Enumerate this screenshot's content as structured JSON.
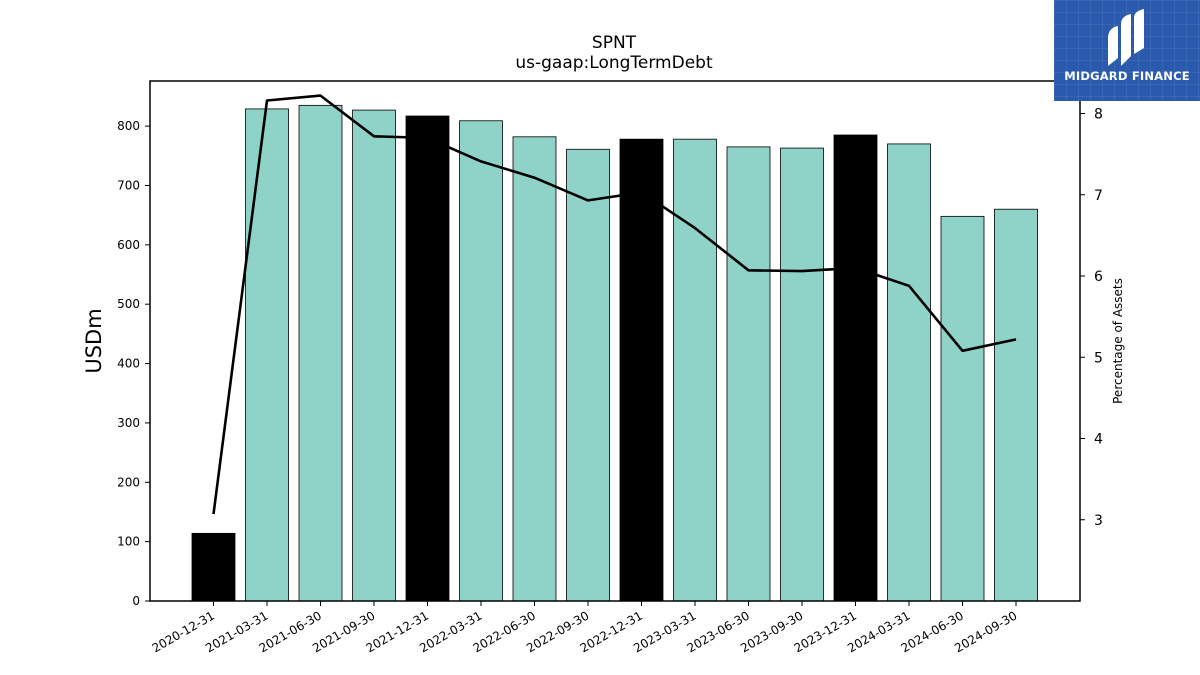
{
  "chart_data": {
    "type": "bar",
    "title": "SPNT",
    "subtitle": "us-gaap:LongTermDebt",
    "ylabel": "USDm",
    "y2label": "Percentage of Assets",
    "ylim": [
      0,
      876
    ],
    "y2lim": [
      2.0,
      8.4
    ],
    "yticks": [
      0,
      100,
      200,
      300,
      400,
      500,
      600,
      700,
      800
    ],
    "y2ticks": [
      3,
      4,
      5,
      6,
      7,
      8
    ],
    "categories": [
      "2020-12-31",
      "2021-03-31",
      "2021-06-30",
      "2021-09-30",
      "2021-12-31",
      "2022-03-31",
      "2022-06-30",
      "2022-09-30",
      "2022-12-31",
      "2023-03-31",
      "2023-06-30",
      "2023-09-30",
      "2023-12-31",
      "2024-03-31",
      "2024-06-30",
      "2024-09-30"
    ],
    "series": [
      {
        "values": [
          114,
          829,
          835,
          827,
          817,
          809,
          782,
          761,
          778,
          778,
          765,
          763,
          785,
          770,
          648,
          660
        ]
      },
      {
        "values": [
          3.07,
          8.16,
          8.22,
          7.72,
          7.7,
          7.41,
          7.21,
          6.93,
          7.03,
          6.59,
          6.07,
          6.06,
          6.1,
          5.88,
          5.08,
          5.22
        ]
      }
    ],
    "highlighted_categories": [
      "2020-12-31",
      "2021-12-31",
      "2022-12-31",
      "2023-12-31"
    ],
    "colors": {
      "bar": "#8fd3c8",
      "bar_highlight": "#000000",
      "line": "#000000",
      "logo_bg": "#2a5aad"
    },
    "grid": false
  },
  "logo": {
    "text": "MIDGARD FINANCE"
  }
}
